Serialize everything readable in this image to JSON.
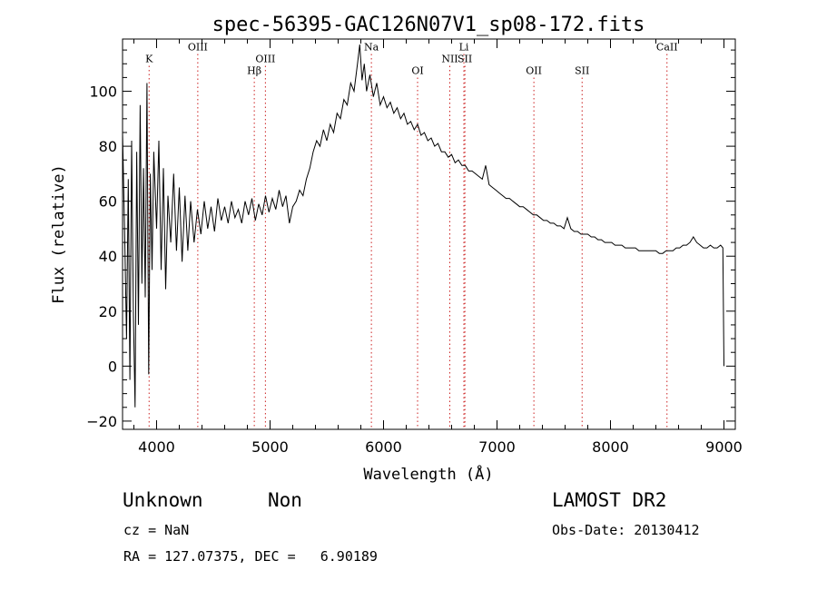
{
  "chart_data": {
    "type": "line",
    "title": "spec-56395-GAC126N07V1_sp08-172.fits",
    "xlabel": "Wavelength (Å)",
    "ylabel": "Flux (relative)",
    "xlim": [
      3700,
      9100
    ],
    "ylim": [
      -23,
      119
    ],
    "xticks": [
      4000,
      5000,
      6000,
      7000,
      8000,
      9000
    ],
    "yticks": [
      -20,
      0,
      20,
      40,
      60,
      80,
      100
    ],
    "grid": false,
    "legend": "none",
    "series": [
      {
        "points": [
          [
            3700,
            85
          ],
          [
            3720,
            45
          ],
          [
            3735,
            10
          ],
          [
            3750,
            68
          ],
          [
            3765,
            -5
          ],
          [
            3780,
            82
          ],
          [
            3795,
            20
          ],
          [
            3810,
            -15
          ],
          [
            3825,
            78
          ],
          [
            3840,
            15
          ],
          [
            3855,
            95
          ],
          [
            3870,
            30
          ],
          [
            3885,
            72
          ],
          [
            3900,
            25
          ],
          [
            3915,
            103
          ],
          [
            3930,
            -3
          ],
          [
            3945,
            70
          ],
          [
            3960,
            35
          ],
          [
            3975,
            78
          ],
          [
            4000,
            50
          ],
          [
            4020,
            82
          ],
          [
            4040,
            35
          ],
          [
            4060,
            72
          ],
          [
            4080,
            28
          ],
          [
            4100,
            62
          ],
          [
            4125,
            45
          ],
          [
            4150,
            70
          ],
          [
            4175,
            42
          ],
          [
            4200,
            65
          ],
          [
            4225,
            38
          ],
          [
            4250,
            62
          ],
          [
            4275,
            42
          ],
          [
            4300,
            60
          ],
          [
            4330,
            45
          ],
          [
            4360,
            57
          ],
          [
            4390,
            48
          ],
          [
            4420,
            60
          ],
          [
            4450,
            50
          ],
          [
            4480,
            58
          ],
          [
            4510,
            49
          ],
          [
            4540,
            61
          ],
          [
            4570,
            53
          ],
          [
            4600,
            58
          ],
          [
            4630,
            52
          ],
          [
            4660,
            60
          ],
          [
            4690,
            54
          ],
          [
            4720,
            57
          ],
          [
            4750,
            52
          ],
          [
            4780,
            60
          ],
          [
            4810,
            55
          ],
          [
            4840,
            61
          ],
          [
            4870,
            53
          ],
          [
            4900,
            59
          ],
          [
            4930,
            55
          ],
          [
            4960,
            62
          ],
          [
            4990,
            56
          ],
          [
            5020,
            61
          ],
          [
            5050,
            57
          ],
          [
            5080,
            64
          ],
          [
            5110,
            58
          ],
          [
            5140,
            62
          ],
          [
            5170,
            52
          ],
          [
            5200,
            58
          ],
          [
            5230,
            60
          ],
          [
            5260,
            64
          ],
          [
            5290,
            62
          ],
          [
            5320,
            68
          ],
          [
            5350,
            72
          ],
          [
            5380,
            78
          ],
          [
            5410,
            82
          ],
          [
            5440,
            80
          ],
          [
            5470,
            86
          ],
          [
            5500,
            82
          ],
          [
            5530,
            88
          ],
          [
            5560,
            85
          ],
          [
            5590,
            92
          ],
          [
            5620,
            90
          ],
          [
            5650,
            97
          ],
          [
            5680,
            95
          ],
          [
            5710,
            103
          ],
          [
            5740,
            100
          ],
          [
            5770,
            110
          ],
          [
            5790,
            117
          ],
          [
            5810,
            104
          ],
          [
            5830,
            110
          ],
          [
            5850,
            100
          ],
          [
            5880,
            106
          ],
          [
            5910,
            98
          ],
          [
            5940,
            103
          ],
          [
            5970,
            95
          ],
          [
            6000,
            98
          ],
          [
            6030,
            94
          ],
          [
            6060,
            96
          ],
          [
            6090,
            92
          ],
          [
            6120,
            94
          ],
          [
            6150,
            90
          ],
          [
            6180,
            92
          ],
          [
            6210,
            88
          ],
          [
            6240,
            89
          ],
          [
            6270,
            86
          ],
          [
            6300,
            88
          ],
          [
            6330,
            84
          ],
          [
            6360,
            85
          ],
          [
            6390,
            82
          ],
          [
            6420,
            83
          ],
          [
            6450,
            80
          ],
          [
            6480,
            81
          ],
          [
            6510,
            78
          ],
          [
            6540,
            78
          ],
          [
            6570,
            76
          ],
          [
            6600,
            77
          ],
          [
            6630,
            74
          ],
          [
            6660,
            75
          ],
          [
            6690,
            73
          ],
          [
            6720,
            73
          ],
          [
            6750,
            71
          ],
          [
            6780,
            71
          ],
          [
            6810,
            70
          ],
          [
            6840,
            69
          ],
          [
            6870,
            68
          ],
          [
            6900,
            73
          ],
          [
            6930,
            66
          ],
          [
            6960,
            65
          ],
          [
            6990,
            64
          ],
          [
            7020,
            63
          ],
          [
            7050,
            62
          ],
          [
            7080,
            61
          ],
          [
            7110,
            61
          ],
          [
            7140,
            60
          ],
          [
            7170,
            59
          ],
          [
            7200,
            58
          ],
          [
            7230,
            58
          ],
          [
            7260,
            57
          ],
          [
            7290,
            56
          ],
          [
            7320,
            55
          ],
          [
            7350,
            55
          ],
          [
            7380,
            54
          ],
          [
            7410,
            53
          ],
          [
            7440,
            53
          ],
          [
            7470,
            52
          ],
          [
            7500,
            52
          ],
          [
            7530,
            51
          ],
          [
            7560,
            51
          ],
          [
            7590,
            50
          ],
          [
            7620,
            54
          ],
          [
            7650,
            50
          ],
          [
            7680,
            49
          ],
          [
            7710,
            49
          ],
          [
            7740,
            48
          ],
          [
            7770,
            48
          ],
          [
            7800,
            48
          ],
          [
            7830,
            47
          ],
          [
            7860,
            47
          ],
          [
            7890,
            46
          ],
          [
            7920,
            46
          ],
          [
            7950,
            45
          ],
          [
            7980,
            45
          ],
          [
            8010,
            45
          ],
          [
            8040,
            44
          ],
          [
            8070,
            44
          ],
          [
            8100,
            44
          ],
          [
            8130,
            43
          ],
          [
            8160,
            43
          ],
          [
            8190,
            43
          ],
          [
            8220,
            43
          ],
          [
            8250,
            42
          ],
          [
            8280,
            42
          ],
          [
            8310,
            42
          ],
          [
            8340,
            42
          ],
          [
            8370,
            42
          ],
          [
            8400,
            42
          ],
          [
            8430,
            41
          ],
          [
            8460,
            41
          ],
          [
            8490,
            42
          ],
          [
            8520,
            42
          ],
          [
            8550,
            42
          ],
          [
            8580,
            43
          ],
          [
            8610,
            43
          ],
          [
            8640,
            44
          ],
          [
            8670,
            44
          ],
          [
            8700,
            45
          ],
          [
            8730,
            47
          ],
          [
            8760,
            45
          ],
          [
            8790,
            44
          ],
          [
            8820,
            43
          ],
          [
            8850,
            43
          ],
          [
            8880,
            44
          ],
          [
            8910,
            43
          ],
          [
            8940,
            43
          ],
          [
            8970,
            44
          ],
          [
            8990,
            43
          ],
          [
            9000,
            0
          ]
        ]
      }
    ],
    "lines": [
      {
        "label": "K",
        "x": 3934,
        "row": 3
      },
      {
        "label": "OIII",
        "x": 4363,
        "row": 1
      },
      {
        "label": "Hβ",
        "x": 4861,
        "row": 5
      },
      {
        "label": "OIII",
        "x": 4959,
        "row": 3
      },
      {
        "label": "Na",
        "x": 5893,
        "row": 1
      },
      {
        "label": "OI",
        "x": 6300,
        "row": 5
      },
      {
        "label": "NII",
        "x": 6584,
        "row": 3
      },
      {
        "label": "Li",
        "x": 6708,
        "row": 1
      },
      {
        "label": "SII",
        "x": 6717,
        "row": 3
      },
      {
        "label": "OII",
        "x": 7325,
        "row": 5
      },
      {
        "label": "SII",
        "x": 7750,
        "row": 5
      },
      {
        "label": "CaII",
        "x": 8498,
        "row": 1
      }
    ]
  },
  "info": {
    "class": "Unknown",
    "subclass": "Non",
    "survey": "LAMOST DR2",
    "cz": "cz = NaN",
    "obs_date": "Obs-Date: 20130412",
    "coords": "RA = 127.07375, DEC =   6.90189"
  }
}
